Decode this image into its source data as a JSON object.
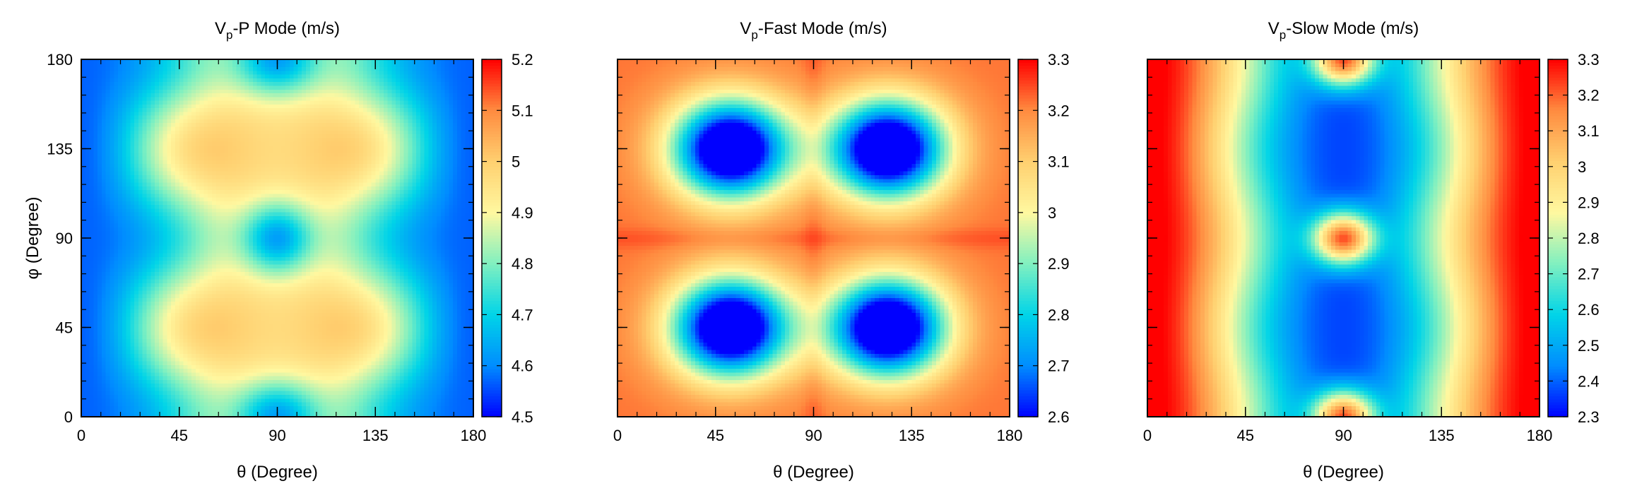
{
  "chart_data": [
    {
      "type": "heatmap",
      "title": {
        "main": "V",
        "sub": "p",
        "rest": "-P Mode (m/s)"
      },
      "xlabel": "θ (Degree)",
      "ylabel": "φ (Degree)",
      "xlim": [
        0,
        180
      ],
      "ylim": [
        0,
        180
      ],
      "xticks": [
        "0",
        "45",
        "90",
        "135",
        "180"
      ],
      "yticks": [
        "0",
        "45",
        "90",
        "135",
        "180"
      ],
      "colorbar": {
        "range": [
          4.5,
          5.2
        ],
        "ticks": [
          "4.5",
          "4.6",
          "4.7",
          "4.8",
          "4.9",
          "5",
          "5.1",
          "5.2"
        ]
      },
      "field": {
        "model": "p_mode"
      }
    },
    {
      "type": "heatmap",
      "title": {
        "main": "V",
        "sub": "p",
        "rest": "-Fast Mode (m/s)"
      },
      "xlabel": "θ (Degree)",
      "ylabel": "",
      "xlim": [
        0,
        180
      ],
      "ylim": [
        0,
        180
      ],
      "xticks": [
        "0",
        "45",
        "90",
        "135",
        "180"
      ],
      "yticks": [],
      "colorbar": {
        "range": [
          2.6,
          3.3
        ],
        "ticks": [
          "2.6",
          "2.7",
          "2.8",
          "2.9",
          "3",
          "3.1",
          "3.2",
          "3.3"
        ]
      },
      "field": {
        "model": "fast_mode"
      }
    },
    {
      "type": "heatmap",
      "title": {
        "main": "V",
        "sub": "p",
        "rest": "-Slow Mode (m/s)"
      },
      "xlabel": "θ (Degree)",
      "ylabel": "",
      "xlim": [
        0,
        180
      ],
      "ylim": [
        0,
        180
      ],
      "xticks": [
        "0",
        "45",
        "90",
        "135",
        "180"
      ],
      "yticks": [],
      "colorbar": {
        "range": [
          2.3,
          3.3
        ],
        "ticks": [
          "2.3",
          "2.4",
          "2.5",
          "2.6",
          "2.7",
          "2.8",
          "2.9",
          "3",
          "3.1",
          "3.2",
          "3.3"
        ]
      },
      "field": {
        "model": "slow_mode"
      }
    }
  ],
  "colormap": [
    "#0000ff",
    "#008cff",
    "#00d4e8",
    "#80f0c0",
    "#fff8a0",
    "#ffd070",
    "#ff8c40",
    "#ff0000"
  ]
}
